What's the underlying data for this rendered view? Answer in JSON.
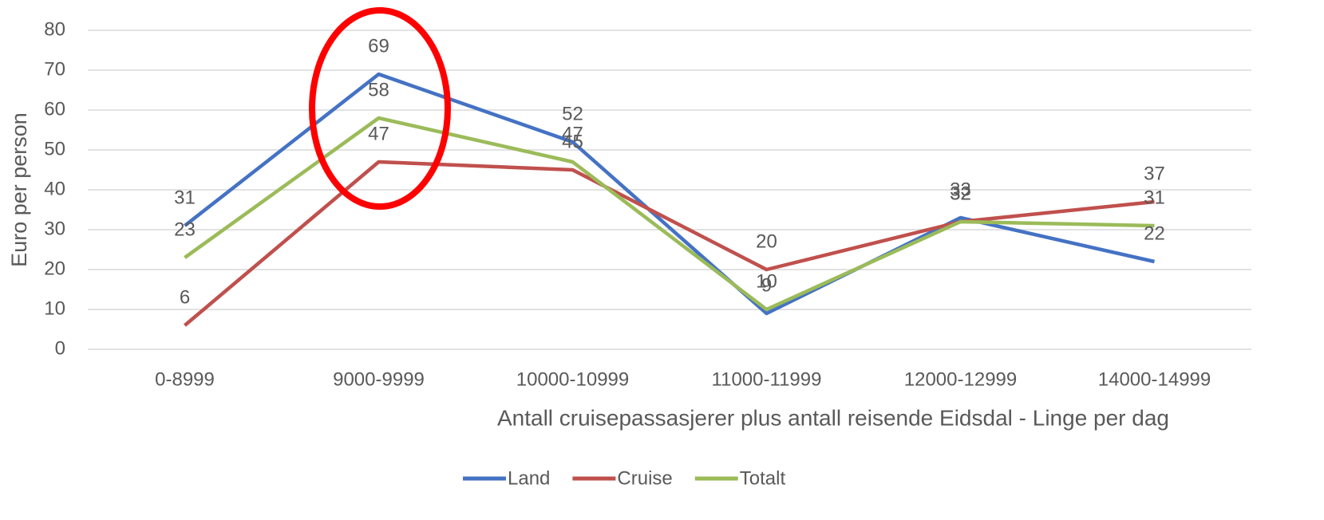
{
  "chart_data": {
    "type": "line",
    "x_label": "Antall cruisepassasjerer plus antall reisende Eidsdal - Linge per dag",
    "y_label": "Euro per person",
    "categories": [
      "0-8999",
      "9000-9999",
      "10000-10999",
      "11000-11999",
      "12000-12999",
      "14000-14999"
    ],
    "series": [
      {
        "name": "Land",
        "color": "#4472c4",
        "values": [
          31,
          69,
          52,
          9,
          33,
          22
        ]
      },
      {
        "name": "Cruise",
        "color": "#c0504d",
        "values": [
          6,
          47,
          45,
          20,
          32,
          37
        ]
      },
      {
        "name": "Totalt",
        "color": "#9bbb59",
        "values": [
          23,
          58,
          47,
          10,
          32,
          31
        ]
      }
    ],
    "ylim": [
      0,
      80
    ],
    "yticks": [
      0,
      10,
      20,
      30,
      40,
      50,
      60,
      70,
      80
    ],
    "grid": true,
    "legend": "bottom"
  }
}
